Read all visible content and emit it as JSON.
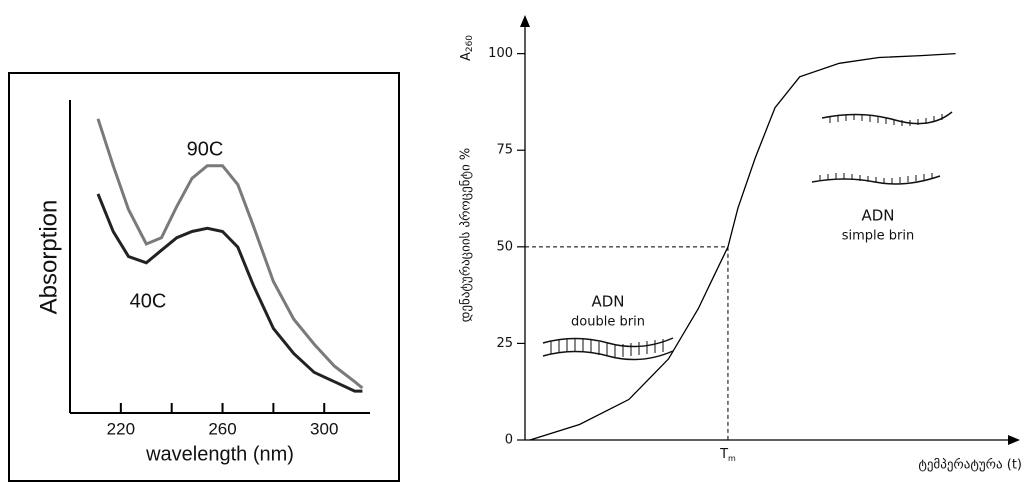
{
  "chart_data": [
    {
      "type": "line",
      "y_label": "Absorption",
      "x_label": "wavelength  (nm)",
      "x": [
        211,
        217,
        223,
        230,
        236,
        242,
        248,
        254,
        260,
        266,
        272,
        280,
        288,
        296,
        304,
        312,
        315
      ],
      "xlim": [
        200,
        318
      ],
      "ylim": [
        0,
        1
      ],
      "xticks": [
        220,
        260,
        300
      ],
      "xminorticks": [
        240,
        280
      ],
      "series": [
        {
          "name": "90C",
          "color": "#7a7a7a",
          "values": [
            0.94,
            0.79,
            0.65,
            0.54,
            0.56,
            0.66,
            0.75,
            0.79,
            0.79,
            0.73,
            0.6,
            0.42,
            0.3,
            0.22,
            0.15,
            0.1,
            0.08
          ]
        },
        {
          "name": "40C",
          "color": "#222222",
          "values": [
            0.7,
            0.58,
            0.5,
            0.48,
            0.52,
            0.56,
            0.58,
            0.59,
            0.58,
            0.53,
            0.41,
            0.27,
            0.19,
            0.13,
            0.1,
            0.07,
            0.07
          ]
        }
      ]
    },
    {
      "type": "line",
      "y_label_main": "A",
      "y_label_sub": "260",
      "y_label": "დენატურაციის პროცენტი %",
      "x_label": "ტემპერატურა (t)",
      "x": [
        1,
        11,
        21,
        29,
        35,
        38,
        41,
        43,
        46.5,
        50.5,
        55.5,
        63.5,
        71.5,
        80,
        87
      ],
      "values": [
        0,
        4,
        10.5,
        21,
        34,
        42,
        50,
        60,
        73,
        86,
        94,
        97.5,
        99,
        99.5,
        100
      ],
      "color": "#000000",
      "xlim": [
        0,
        100
      ],
      "ylim": [
        0,
        110
      ],
      "yticks": [
        0,
        25,
        50,
        75,
        100
      ],
      "tm": {
        "label": "T",
        "subscript": "m",
        "x": 41,
        "y": 50
      },
      "annotations": [
        {
          "title": "ADN",
          "text": "double brin"
        },
        {
          "title": "ADN",
          "text": "simple brin"
        }
      ]
    }
  ]
}
